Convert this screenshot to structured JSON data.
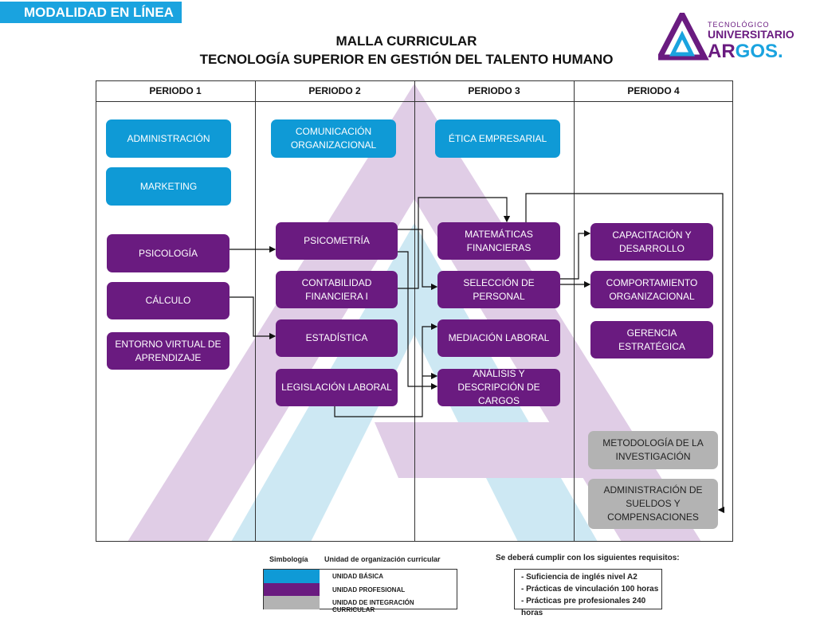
{
  "modality_badge": "MODALIDAD EN LÍNEA",
  "title_line1": "MALLA CURRICULAR",
  "title_line2": "TECNOLOGÍA SUPERIOR EN GESTIÓN DEL TALENTO HUMANO",
  "logo": {
    "line1": "TECNOLÓGICO",
    "line2": "UNIVERSITARIO",
    "line3": "ARGOS."
  },
  "colors": {
    "basica": "#0f9ad6",
    "profesional": "#6a1b80",
    "integracion": "#b3b3b3"
  },
  "periods": [
    "PERIODO 1",
    "PERIODO 2",
    "PERIODO 3",
    "PERIODO 4"
  ],
  "subjects": {
    "p1": [
      "ADMINISTRACIÓN",
      "MARKETING",
      "PSICOLOGÍA",
      "CÁLCULO",
      "ENTORNO VIRTUAL DE APRENDIZAJE"
    ],
    "p2": [
      "COMUNICACIÓN ORGANIZACIONAL",
      "PSICOMETRÍA",
      "CONTABILIDAD FINANCIERA I",
      "ESTADÍSTICA",
      "LEGISLACIÓN LABORAL"
    ],
    "p3": [
      "ÉTICA EMPRESARIAL",
      "MATEMÁTICAS FINANCIERAS",
      "SELECCIÓN DE PERSONAL",
      "MEDIACIÓN LABORAL",
      "ANÁLISIS Y DESCRIPCIÓN DE CARGOS"
    ],
    "p4": [
      "CAPACITACIÓN Y DESARROLLO",
      "COMPORTAMIENTO ORGANIZACIONAL",
      "GERENCIA ESTRATÉGICA",
      "METODOLOGÍA DE LA INVESTIGACIÓN",
      "ADMINISTRACIÓN DE SUELDOS Y COMPENSACIONES"
    ]
  },
  "legend": {
    "simbologia": "Simbología",
    "unidad_header": "Unidad de organización  curricular",
    "items": [
      "UNIDAD BÁSICA",
      "UNIDAD PROFESIONAL",
      "UNIDAD DE INTEGRACIÓN CURRICULAR"
    ]
  },
  "requirements": {
    "title": "Se deberá cumplir con los siguientes requisitos:",
    "items": [
      "- Suficiencia de inglés nivel A2",
      "- Prácticas de vinculación 100 horas",
      "- Prácticas pre profesionales 240 horas"
    ]
  }
}
